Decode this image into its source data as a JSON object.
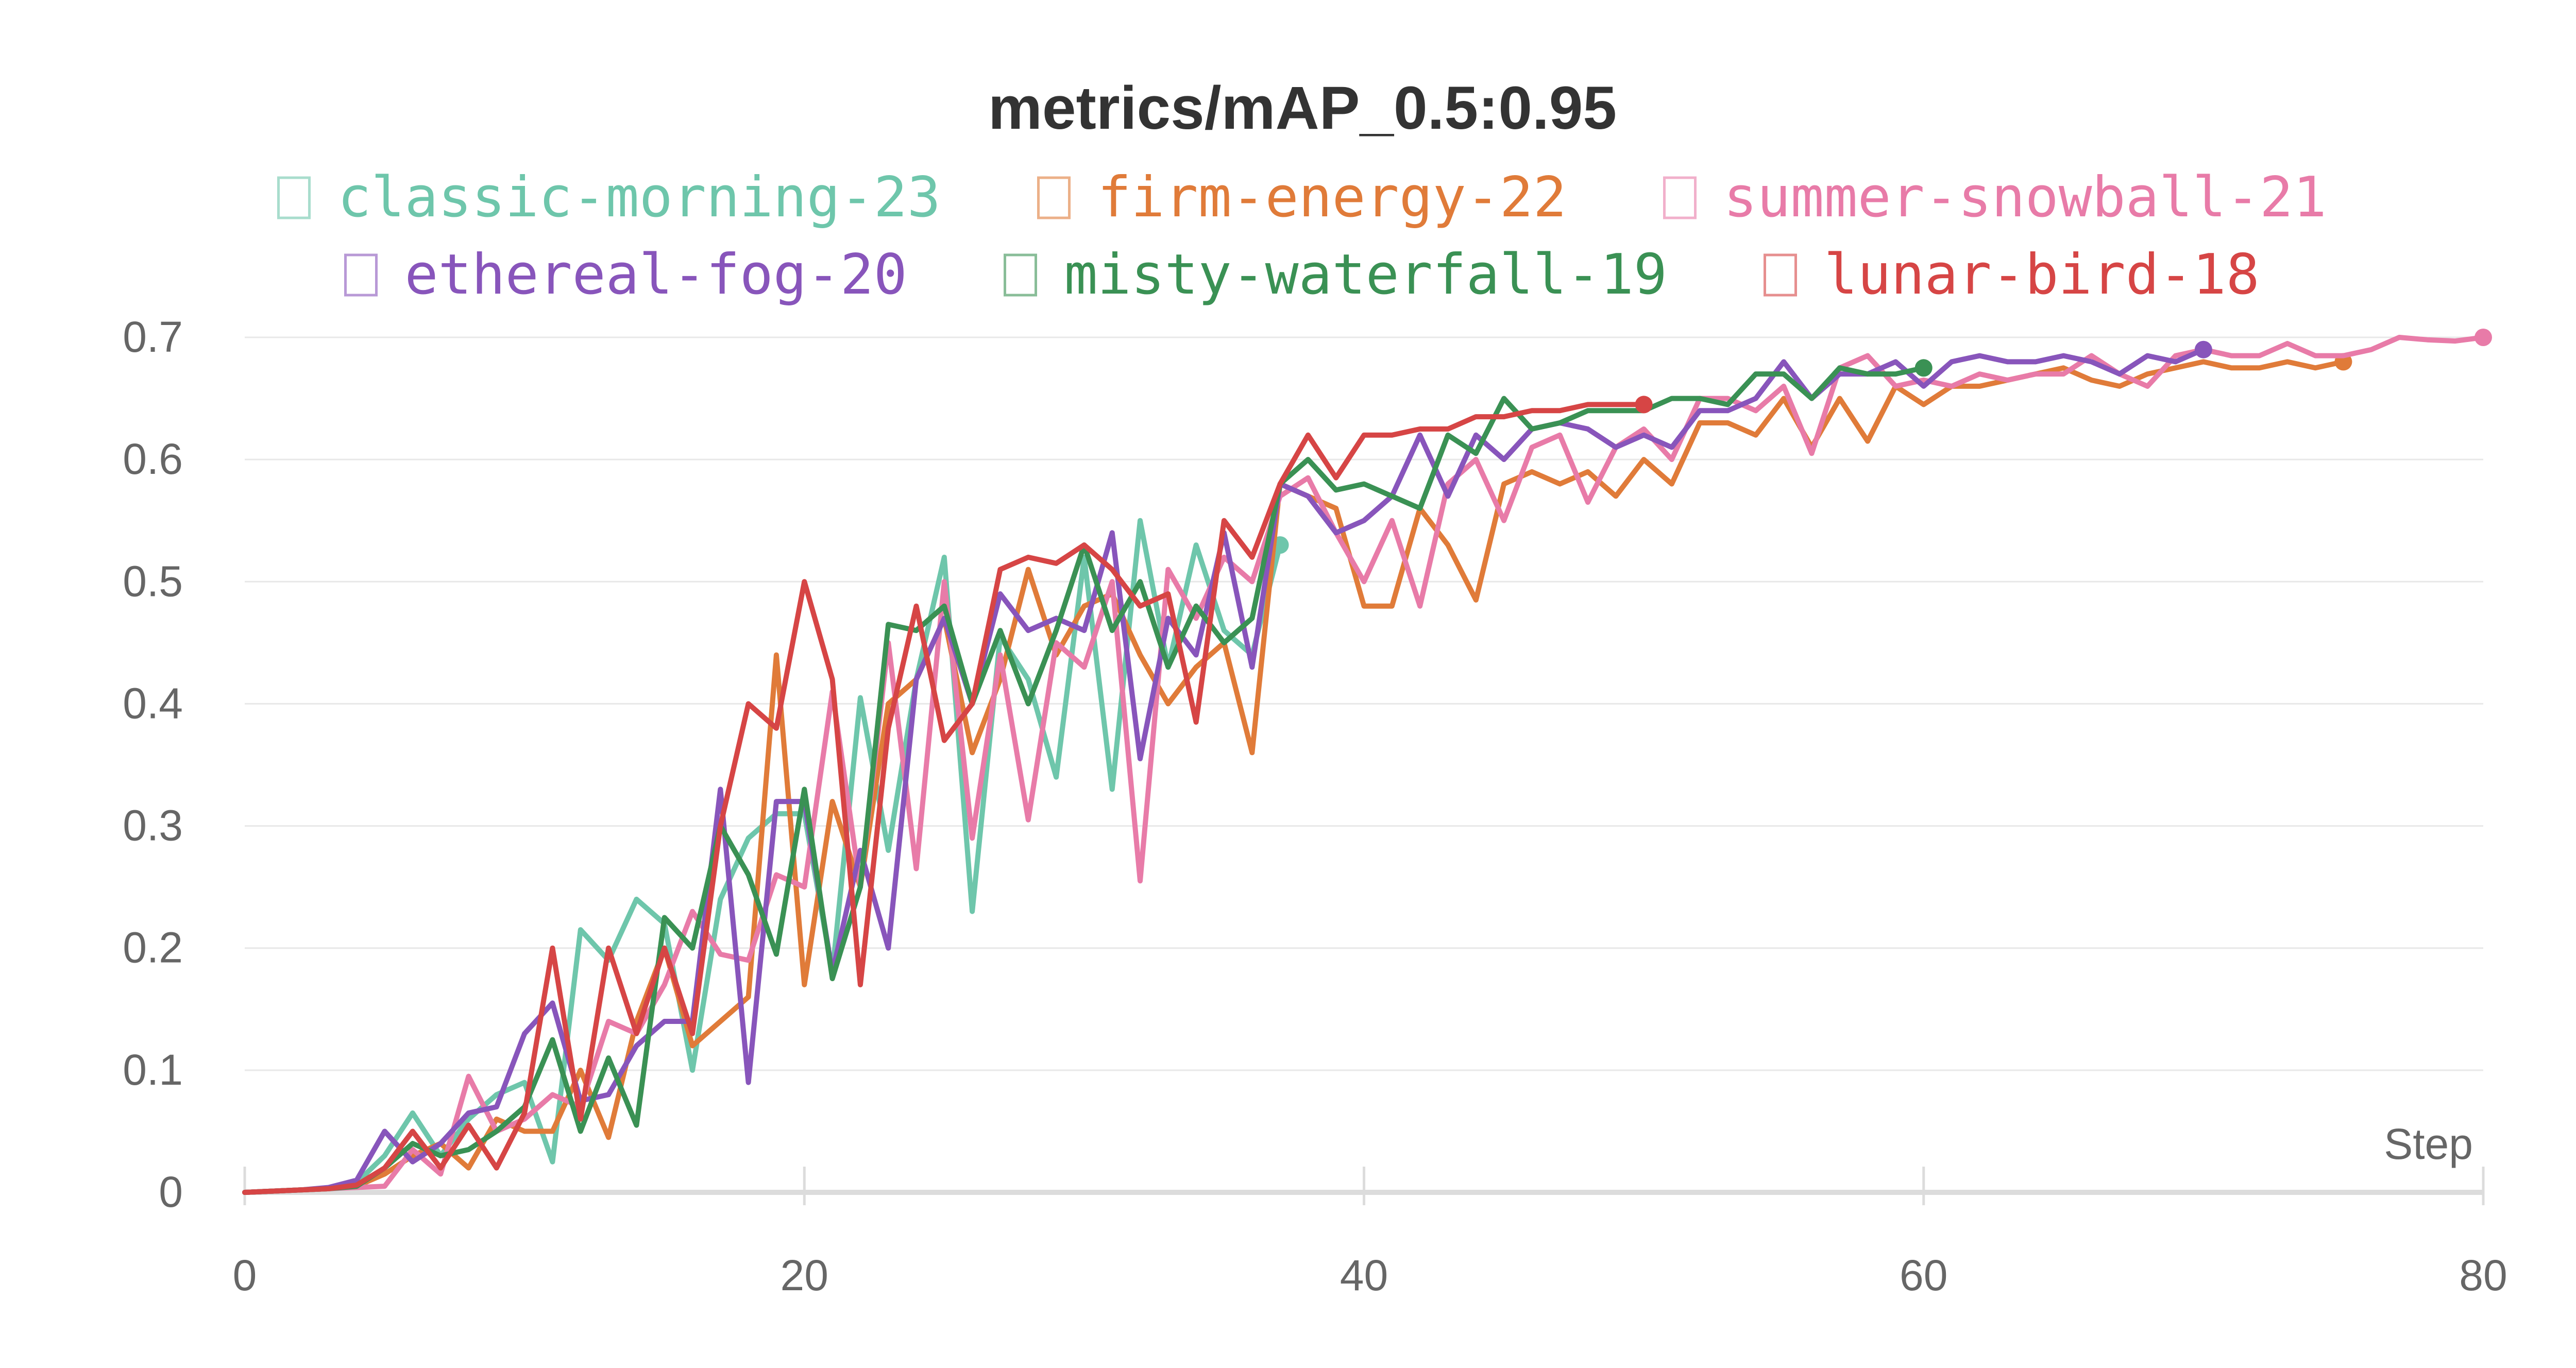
{
  "chart_data": {
    "type": "line",
    "title": "metrics/mAP_0.5:0.95",
    "xlabel": "Step",
    "ylabel": "",
    "xlim": [
      0,
      80
    ],
    "ylim": [
      0,
      0.7
    ],
    "xticks": [
      0,
      20,
      40,
      60,
      80
    ],
    "yticks": [
      0,
      0.1,
      0.2,
      0.3,
      0.4,
      0.5,
      0.6,
      0.7
    ],
    "xtick_labels": [
      "0",
      "20",
      "40",
      "60",
      "80"
    ],
    "ytick_labels": [
      "0",
      "0.1",
      "0.2",
      "0.3",
      "0.4",
      "0.5",
      "0.6",
      "0.7"
    ],
    "grid": true,
    "legend_position": "top",
    "series": [
      {
        "name": "classic-morning-23",
        "color": "#6ec6ab",
        "x": [
          0,
          1,
          2,
          3,
          4,
          5,
          6,
          7,
          8,
          9,
          10,
          11,
          12,
          13,
          14,
          15,
          16,
          17,
          18,
          19,
          20,
          21,
          22,
          23,
          24,
          25,
          26,
          27,
          28,
          29,
          30,
          31,
          32,
          33,
          34,
          35,
          36,
          37
        ],
        "y": [
          0,
          0.001,
          0.002,
          0.003,
          0.008,
          0.03,
          0.065,
          0.03,
          0.06,
          0.08,
          0.09,
          0.025,
          0.215,
          0.19,
          0.24,
          0.22,
          0.1,
          0.24,
          0.29,
          0.31,
          0.31,
          0.18,
          0.405,
          0.28,
          0.42,
          0.52,
          0.23,
          0.455,
          0.42,
          0.34,
          0.52,
          0.33,
          0.55,
          0.43,
          0.53,
          0.46,
          0.44,
          0.53
        ]
      },
      {
        "name": "firm-energy-22",
        "color": "#e07b39",
        "x": [
          0,
          1,
          2,
          3,
          4,
          5,
          6,
          7,
          8,
          9,
          10,
          11,
          12,
          13,
          14,
          15,
          16,
          17,
          18,
          19,
          20,
          21,
          22,
          23,
          24,
          25,
          26,
          27,
          28,
          29,
          30,
          31,
          32,
          33,
          34,
          35,
          36,
          37,
          38,
          39,
          40,
          41,
          42,
          43,
          44,
          45,
          46,
          47,
          48,
          49,
          50,
          51,
          52,
          53,
          54,
          55,
          56,
          57,
          58,
          59,
          60,
          61,
          62,
          63,
          64,
          65,
          66,
          67,
          68,
          69,
          70,
          71,
          72,
          73,
          74,
          75
        ],
        "y": [
          0,
          0.001,
          0.002,
          0.003,
          0.005,
          0.015,
          0.03,
          0.04,
          0.02,
          0.06,
          0.05,
          0.05,
          0.1,
          0.045,
          0.14,
          0.2,
          0.12,
          0.14,
          0.16,
          0.44,
          0.17,
          0.32,
          0.25,
          0.4,
          0.42,
          0.47,
          0.36,
          0.42,
          0.51,
          0.44,
          0.48,
          0.49,
          0.44,
          0.4,
          0.43,
          0.45,
          0.36,
          0.58,
          0.57,
          0.56,
          0.48,
          0.48,
          0.56,
          0.53,
          0.485,
          0.58,
          0.59,
          0.58,
          0.59,
          0.57,
          0.6,
          0.58,
          0.63,
          0.63,
          0.62,
          0.65,
          0.61,
          0.65,
          0.615,
          0.66,
          0.645,
          0.66,
          0.66,
          0.665,
          0.67,
          0.675,
          0.665,
          0.66,
          0.67,
          0.675,
          0.68,
          0.675,
          0.675,
          0.68,
          0.675,
          0.68
        ]
      },
      {
        "name": "summer-snowball-21",
        "color": "#e87ba8",
        "x": [
          0,
          1,
          2,
          3,
          4,
          5,
          6,
          7,
          8,
          9,
          10,
          11,
          12,
          13,
          14,
          15,
          16,
          17,
          18,
          19,
          20,
          21,
          22,
          23,
          24,
          25,
          26,
          27,
          28,
          29,
          30,
          31,
          32,
          33,
          34,
          35,
          36,
          37,
          38,
          39,
          40,
          41,
          42,
          43,
          44,
          45,
          46,
          47,
          48,
          49,
          50,
          51,
          52,
          53,
          54,
          55,
          56,
          57,
          58,
          59,
          60,
          61,
          62,
          63,
          64,
          65,
          66,
          67,
          68,
          69,
          70,
          71,
          72,
          73,
          74,
          75,
          76,
          77,
          78,
          79,
          80
        ],
        "y": [
          0,
          0.001,
          0.002,
          0.003,
          0.004,
          0.005,
          0.035,
          0.015,
          0.095,
          0.05,
          0.06,
          0.08,
          0.07,
          0.14,
          0.13,
          0.17,
          0.23,
          0.195,
          0.19,
          0.26,
          0.25,
          0.41,
          0.25,
          0.45,
          0.265,
          0.5,
          0.29,
          0.44,
          0.305,
          0.45,
          0.43,
          0.5,
          0.255,
          0.51,
          0.47,
          0.52,
          0.5,
          0.57,
          0.585,
          0.54,
          0.5,
          0.55,
          0.48,
          0.58,
          0.6,
          0.55,
          0.61,
          0.62,
          0.565,
          0.61,
          0.625,
          0.6,
          0.65,
          0.65,
          0.64,
          0.66,
          0.605,
          0.675,
          0.685,
          0.66,
          0.665,
          0.66,
          0.67,
          0.665,
          0.67,
          0.67,
          0.685,
          0.67,
          0.66,
          0.685,
          0.69,
          0.685,
          0.685,
          0.695,
          0.685,
          0.685,
          0.69,
          0.7,
          0.698,
          0.697,
          0.7
        ]
      },
      {
        "name": "ethereal-fog-20",
        "color": "#8855bb",
        "x": [
          0,
          1,
          2,
          3,
          4,
          5,
          6,
          7,
          8,
          9,
          10,
          11,
          12,
          13,
          14,
          15,
          16,
          17,
          18,
          19,
          20,
          21,
          22,
          23,
          24,
          25,
          26,
          27,
          28,
          29,
          30,
          31,
          32,
          33,
          34,
          35,
          36,
          37,
          38,
          39,
          40,
          41,
          42,
          43,
          44,
          45,
          46,
          47,
          48,
          49,
          50,
          51,
          52,
          53,
          54,
          55,
          56,
          57,
          58,
          59,
          60,
          61,
          62,
          63,
          64,
          65,
          66,
          67,
          68,
          69,
          70
        ],
        "y": [
          0,
          0.001,
          0.002,
          0.004,
          0.01,
          0.05,
          0.025,
          0.04,
          0.065,
          0.07,
          0.13,
          0.155,
          0.075,
          0.08,
          0.12,
          0.14,
          0.14,
          0.33,
          0.09,
          0.32,
          0.32,
          0.18,
          0.28,
          0.2,
          0.42,
          0.47,
          0.4,
          0.49,
          0.46,
          0.47,
          0.46,
          0.54,
          0.355,
          0.47,
          0.44,
          0.54,
          0.43,
          0.58,
          0.57,
          0.54,
          0.55,
          0.57,
          0.62,
          0.57,
          0.62,
          0.6,
          0.625,
          0.63,
          0.625,
          0.61,
          0.62,
          0.61,
          0.64,
          0.64,
          0.65,
          0.68,
          0.65,
          0.67,
          0.67,
          0.68,
          0.66,
          0.68,
          0.685,
          0.68,
          0.68,
          0.685,
          0.68,
          0.67,
          0.685,
          0.68,
          0.69
        ]
      },
      {
        "name": "misty-waterfall-19",
        "color": "#3a9154",
        "x": [
          0,
          1,
          2,
          3,
          4,
          5,
          6,
          7,
          8,
          9,
          10,
          11,
          12,
          13,
          14,
          15,
          16,
          17,
          18,
          19,
          20,
          21,
          22,
          23,
          24,
          25,
          26,
          27,
          28,
          29,
          30,
          31,
          32,
          33,
          34,
          35,
          36,
          37,
          38,
          39,
          40,
          41,
          42,
          43,
          44,
          45,
          46,
          47,
          48,
          49,
          50,
          51,
          52,
          53,
          54,
          55,
          56,
          57,
          58,
          59,
          60
        ],
        "y": [
          0,
          0.001,
          0.002,
          0.003,
          0.005,
          0.02,
          0.04,
          0.03,
          0.035,
          0.05,
          0.07,
          0.125,
          0.05,
          0.11,
          0.055,
          0.225,
          0.2,
          0.3,
          0.26,
          0.195,
          0.33,
          0.175,
          0.25,
          0.465,
          0.46,
          0.48,
          0.4,
          0.46,
          0.4,
          0.46,
          0.53,
          0.46,
          0.5,
          0.43,
          0.48,
          0.45,
          0.47,
          0.58,
          0.6,
          0.575,
          0.58,
          0.57,
          0.56,
          0.62,
          0.605,
          0.65,
          0.625,
          0.63,
          0.64,
          0.64,
          0.64,
          0.65,
          0.65,
          0.645,
          0.67,
          0.67,
          0.65,
          0.675,
          0.67,
          0.67,
          0.675
        ]
      },
      {
        "name": "lunar-bird-18",
        "color": "#d64545",
        "x": [
          0,
          1,
          2,
          3,
          4,
          5,
          6,
          7,
          8,
          9,
          10,
          11,
          12,
          13,
          14,
          15,
          16,
          17,
          18,
          19,
          20,
          21,
          22,
          23,
          24,
          25,
          26,
          27,
          28,
          29,
          30,
          31,
          32,
          33,
          34,
          35,
          36,
          37,
          38,
          39,
          40,
          41,
          42,
          43,
          44,
          45,
          46,
          47,
          48,
          49,
          50
        ],
        "y": [
          0,
          0.001,
          0.002,
          0.003,
          0.006,
          0.02,
          0.05,
          0.02,
          0.055,
          0.02,
          0.065,
          0.2,
          0.06,
          0.2,
          0.13,
          0.2,
          0.13,
          0.3,
          0.4,
          0.38,
          0.5,
          0.42,
          0.17,
          0.38,
          0.48,
          0.37,
          0.4,
          0.51,
          0.52,
          0.515,
          0.53,
          0.51,
          0.48,
          0.49,
          0.385,
          0.55,
          0.52,
          0.58,
          0.62,
          0.585,
          0.62,
          0.62,
          0.625,
          0.625,
          0.635,
          0.635,
          0.64,
          0.64,
          0.645,
          0.645,
          0.645
        ]
      }
    ]
  }
}
